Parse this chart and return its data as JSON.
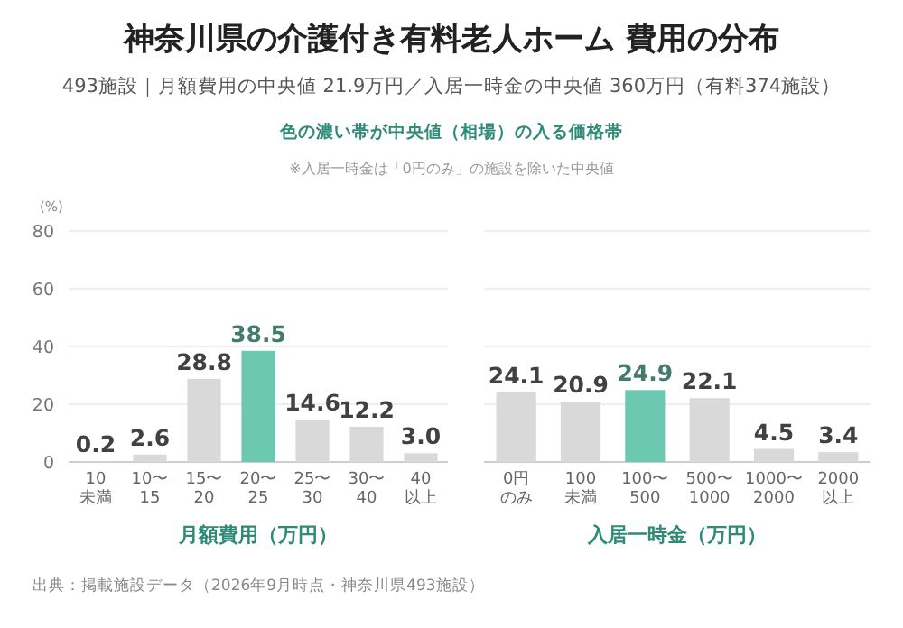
{
  "chart_data": [
    {
      "type": "bar",
      "title": "神奈川県の介護付き有料老人ホーム 費用の分布",
      "subtitle": "493施設｜月額費用の中央値 21.9万円／入居一時金の中央値 360万円（有料374施設）",
      "annotations": [
        "色の濃い帯が中央値（相場）の入る価格帯",
        "※入居一時金は「0円のみ」の施設を除いた中央値",
        "出典：掲載施設データ（2026年9月時点・神奈川県493施設）"
      ],
      "ylabel": "(%)",
      "xlabel": "月額費用（万円）",
      "categories": [
        "10未満",
        "10〜\n15",
        "15〜\n20",
        "20〜\n25",
        "25〜\n30",
        "30〜\n40",
        "40以上"
      ],
      "values": [
        0.2,
        2.6,
        28.8,
        38.5,
        14.6,
        12.2,
        3.0
      ],
      "value_labels": [
        "0.2",
        "2.6",
        "28.8",
        "38.5",
        "14.6",
        "12.2",
        "3.0"
      ],
      "colors": [
        "#d9d9d9",
        "#d9d9d9",
        "#d9d9d9",
        "#6cc8b0",
        "#d9d9d9",
        "#d9d9d9",
        "#d9d9d9"
      ],
      "ylim": [
        0,
        80
      ],
      "yticks": [
        0,
        20,
        40,
        60,
        80
      ],
      "grid": "y"
    },
    {
      "type": "bar",
      "xlabel": "入居一時金（万円）",
      "categories": [
        "0円のみ",
        "100未満",
        "100〜\n500",
        "500〜\n1000",
        "1000〜\n2000",
        "2000以上"
      ],
      "values": [
        24.1,
        20.9,
        24.9,
        22.1,
        4.5,
        3.4
      ],
      "value_labels": [
        "24.1",
        "20.9",
        "24.9",
        "22.1",
        "4.5",
        "3.4"
      ],
      "colors": [
        "#d9d9d9",
        "#d9d9d9",
        "#6cc8b0",
        "#d9d9d9",
        "#d9d9d9",
        "#d9d9d9"
      ],
      "ylim": [
        0,
        80
      ],
      "yticks": [
        0,
        20,
        40,
        60,
        80
      ],
      "grid": "y",
      "tick_labels": "x"
    }
  ]
}
